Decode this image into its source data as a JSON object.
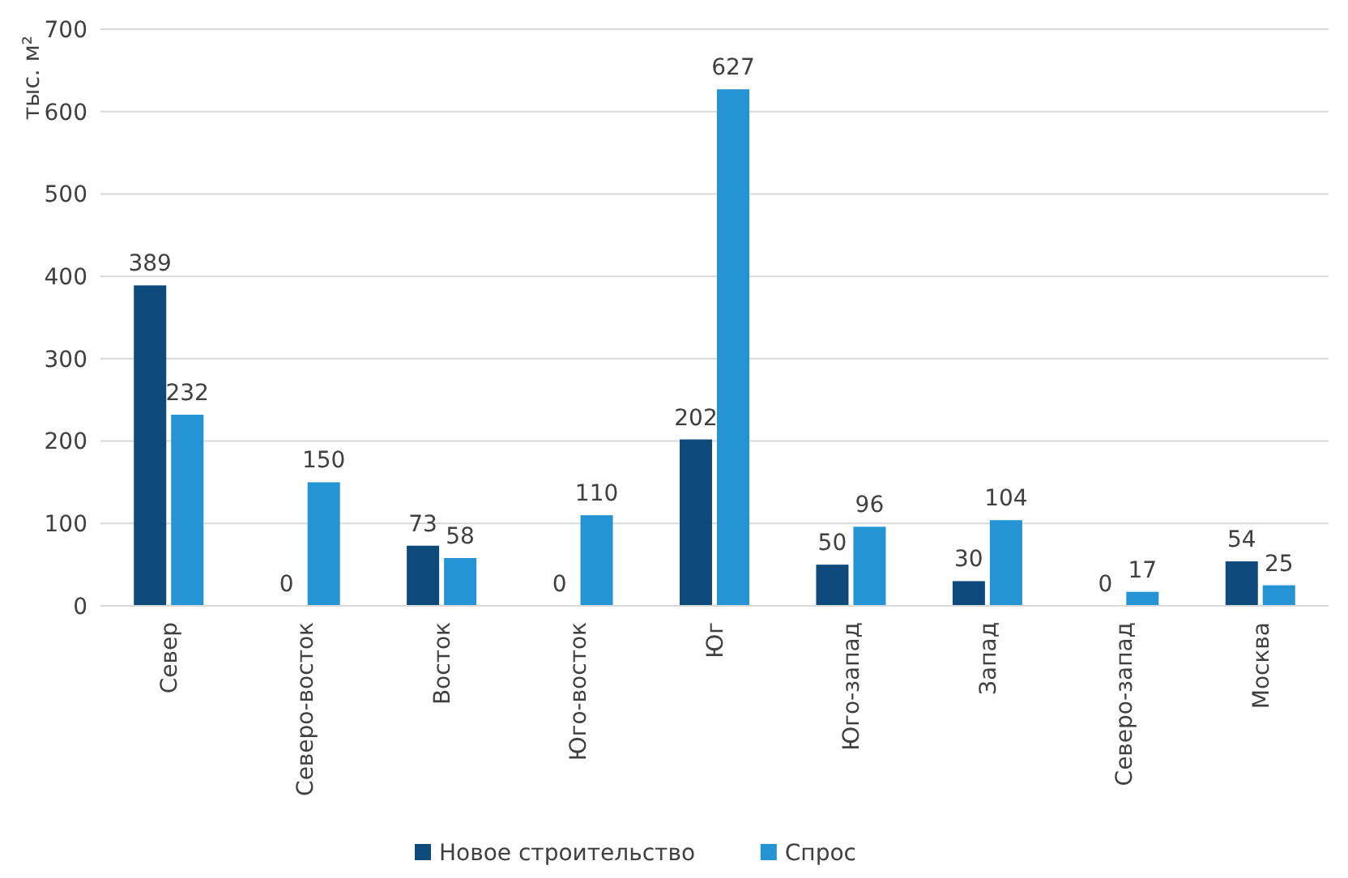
{
  "chart_data": {
    "type": "bar",
    "ylabel": "тыс. м²",
    "categories": [
      "Север",
      "Северо-восток",
      "Восток",
      "Юго-восток",
      "Юг",
      "Юго-запад",
      "Запад",
      "Северо-запад",
      "Москва"
    ],
    "series": [
      {
        "name": "Новое строительство",
        "color": "#0f4a7c",
        "values": [
          389,
          0,
          73,
          0,
          202,
          50,
          30,
          0,
          54
        ]
      },
      {
        "name": "Спрос",
        "color": "#2494d4",
        "values": [
          232,
          150,
          58,
          110,
          627,
          96,
          104,
          17,
          25
        ]
      }
    ],
    "ylim": [
      0,
      700
    ],
    "yticks": [
      0,
      100,
      200,
      300,
      400,
      500,
      600,
      700
    ],
    "grid": "y",
    "legend": "bottom",
    "data_labels": true
  }
}
